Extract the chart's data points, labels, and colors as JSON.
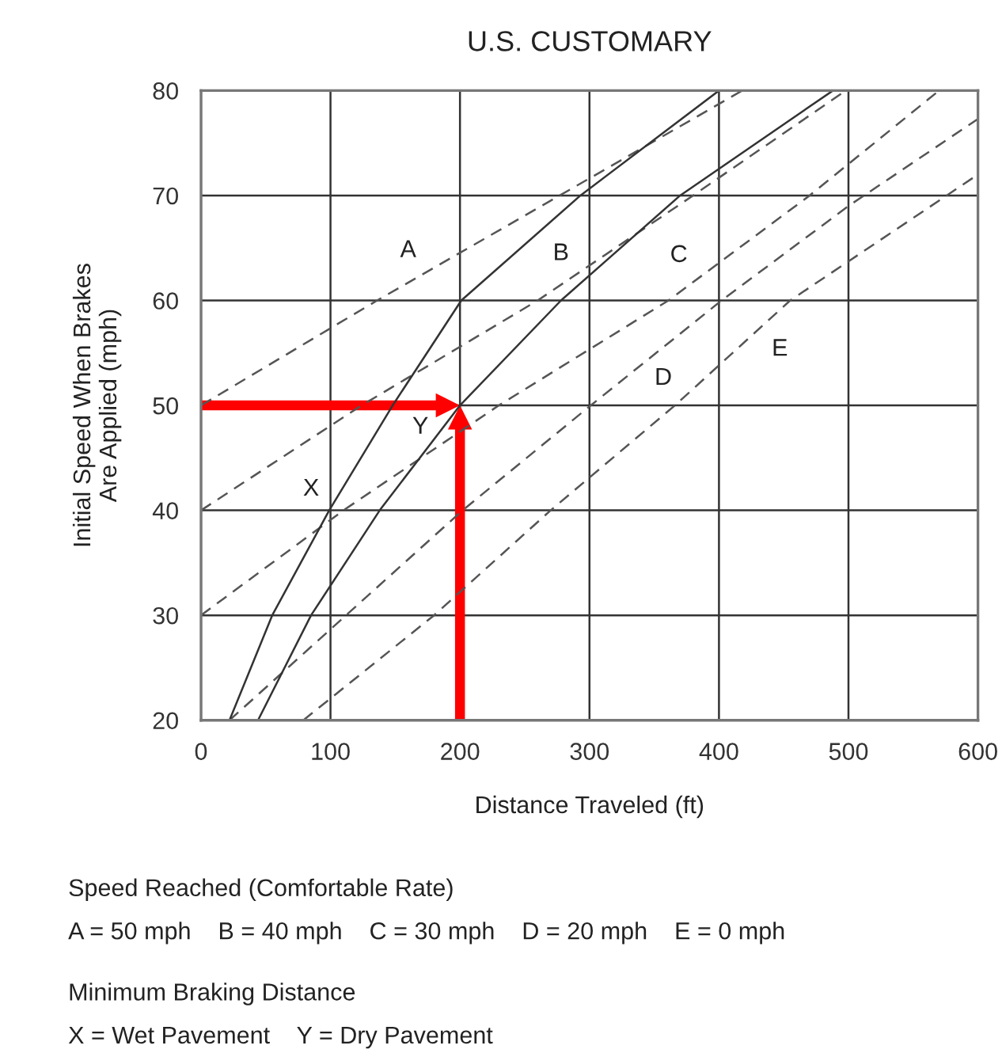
{
  "chart_data": {
    "type": "line",
    "title": "U.S. CUSTOMARY",
    "xlabel": "Distance Traveled (ft)",
    "ylabel": "Initial Speed When Brakes\nAre Applied (mph)",
    "xlim": [
      0,
      600
    ],
    "ylim": [
      20,
      80
    ],
    "xticks": [
      0,
      100,
      200,
      300,
      400,
      500,
      600
    ],
    "yticks": [
      20,
      30,
      40,
      50,
      60,
      70,
      80
    ],
    "grid": true,
    "series": [
      {
        "line_style": "dashed",
        "color": "#555555",
        "x": [
          0,
          136,
          277,
          418
        ],
        "values": [
          50,
          60,
          70,
          80
        ]
      },
      {
        "line_style": "dashed",
        "color": "#555555",
        "x": [
          0,
          124,
          260,
          380,
          498
        ],
        "values": [
          40,
          50,
          60,
          70,
          80
        ]
      },
      {
        "line_style": "dashed",
        "color": "#555555",
        "x": [
          0,
          110,
          230,
          361,
          470,
          570
        ],
        "values": [
          30,
          40,
          50,
          60,
          70,
          80
        ]
      },
      {
        "line_style": "dashed",
        "color": "#555555",
        "x": [
          22,
          112,
          202,
          301,
          402,
          500,
          600
        ],
        "values": [
          20,
          30,
          40,
          50,
          60,
          69,
          77.3
        ]
      },
      {
        "line_style": "dashed",
        "color": "#555555",
        "x": [
          79,
          180,
          270,
          366,
          455,
          600
        ],
        "values": [
          20,
          30,
          40,
          50,
          60,
          72
        ]
      },
      {
        "line_style": "solid",
        "color": "#333333",
        "x": [
          22,
          55,
          99,
          148,
          201,
          293,
          400
        ],
        "values": [
          20,
          30,
          40,
          50,
          60,
          70,
          80
        ]
      },
      {
        "line_style": "solid",
        "color": "#333333",
        "x": [
          44,
          85,
          138,
          200,
          278,
          370,
          488
        ],
        "values": [
          20,
          30,
          40,
          50,
          60,
          70,
          80
        ]
      }
    ],
    "annotations": [
      {
        "text": "A",
        "x": 160,
        "y": 61.8
      },
      {
        "text": "B",
        "x": 278,
        "y": 61.5
      },
      {
        "text": "C",
        "x": 369,
        "y": 60.7
      },
      {
        "text": "D",
        "x": 357,
        "y": 55.5
      },
      {
        "text": "E",
        "x": 447,
        "y": 59.1
      },
      {
        "text": "X",
        "x": 108.8,
        "y": 42
      },
      {
        "text": "Y",
        "x": 200,
        "y": 50
      },
      "Speed Reached (Comfortable Rate)",
      "A = 50 mph    B = 40 mph    C = 30 mph    D = 20 mph    E = 0 mph",
      "Minimum Braking Distance",
      "X = Wet Pavement    Y = Dry Pavement"
    ]
  }
}
